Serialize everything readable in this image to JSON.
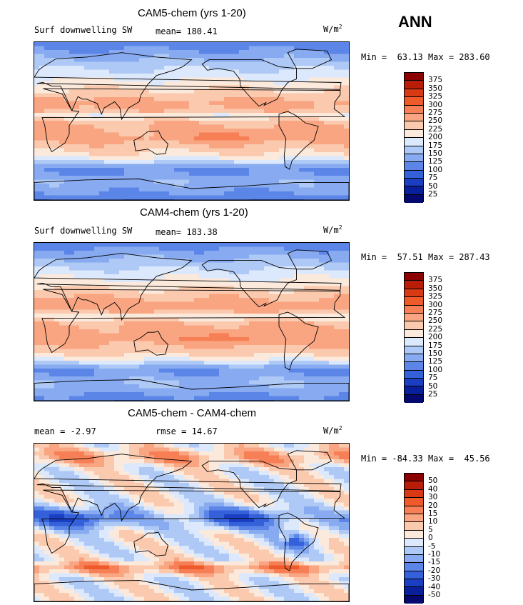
{
  "season": "ANN",
  "chart_data": [
    {
      "type": "heatmap",
      "title": "CAM5-chem (yrs 1-20)",
      "variable": "Surf downwelling SW",
      "mean_label": "mean=",
      "mean": "180.41",
      "units": "W/m",
      "units_exp": "2",
      "min_label": "Min =",
      "min": "63.13",
      "max_label": "Max =",
      "max": "283.60",
      "levels": [
        "375",
        "350",
        "325",
        "300",
        "275",
        "250",
        "225",
        "200",
        "175",
        "150",
        "125",
        "100",
        "75",
        "50",
        "25"
      ],
      "colors": [
        "#8b0000",
        "#b81d07",
        "#d83a14",
        "#ef5a2a",
        "#f67f55",
        "#f9a582",
        "#fbc9ad",
        "#fbe9dc",
        "#dce8fb",
        "#aec9f5",
        "#87aaf0",
        "#5b86e8",
        "#3461d9",
        "#1a3fc2",
        "#0a1f9a",
        "#05096e"
      ]
    },
    {
      "type": "heatmap",
      "title": "CAM4-chem (yrs 1-20)",
      "variable": "Surf downwelling SW",
      "mean_label": "mean=",
      "mean": "183.38",
      "units": "W/m",
      "units_exp": "2",
      "min_label": "Min =",
      "min": "57.51",
      "max_label": "Max =",
      "max": "287.43",
      "levels": [
        "375",
        "350",
        "325",
        "300",
        "275",
        "250",
        "225",
        "200",
        "175",
        "150",
        "125",
        "100",
        "75",
        "50",
        "25"
      ],
      "colors": [
        "#8b0000",
        "#b81d07",
        "#d83a14",
        "#ef5a2a",
        "#f67f55",
        "#f9a582",
        "#fbc9ad",
        "#fbe9dc",
        "#dce8fb",
        "#aec9f5",
        "#87aaf0",
        "#5b86e8",
        "#3461d9",
        "#1a3fc2",
        "#0a1f9a",
        "#05096e"
      ]
    },
    {
      "type": "heatmap",
      "title": "CAM5-chem - CAM4-chem",
      "mean_label": "mean =",
      "mean": "-2.97",
      "rmse_label": "rmse =",
      "rmse": "14.67",
      "units": "W/m",
      "units_exp": "2",
      "min_label": "Min =",
      "min": "-84.33",
      "max_label": "Max =",
      "max": "45.56",
      "levels": [
        "50",
        "40",
        "30",
        "20",
        "15",
        "10",
        "5",
        "0",
        "-5",
        "-10",
        "-15",
        "-20",
        "-30",
        "-40",
        "-50"
      ],
      "colors": [
        "#8b0000",
        "#b81d07",
        "#d83a14",
        "#ef5a2a",
        "#f67f55",
        "#f9a582",
        "#fbc9ad",
        "#fbe9dc",
        "#dce8fb",
        "#aec9f5",
        "#87aaf0",
        "#5b86e8",
        "#3461d9",
        "#1a3fc2",
        "#0a1f9a",
        "#05096e"
      ]
    }
  ]
}
